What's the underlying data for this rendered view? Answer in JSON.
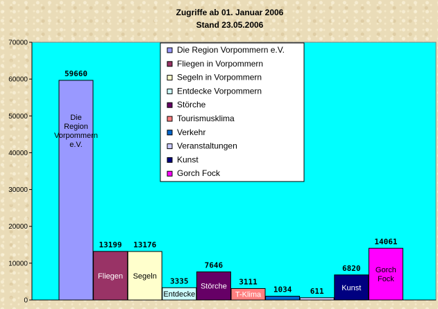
{
  "chart_data": {
    "type": "bar",
    "title": "Zugriffe ab 01. Januar 2006",
    "subtitle": "Stand 23.05.2006",
    "ylim": [
      0,
      70000
    ],
    "yticks": [
      0,
      10000,
      20000,
      30000,
      40000,
      50000,
      60000,
      70000
    ],
    "grid": false,
    "legend_position": "top-center",
    "plot_background": "#00ffff",
    "bars": [
      {
        "name": "Die Region Vorpommern e.V.",
        "value": 59660,
        "data_label": "59660",
        "bar_label": [
          "Die",
          "Region",
          "Vorpommern",
          "e.V."
        ],
        "color": "#9999ff",
        "label_color": "#000000"
      },
      {
        "name": "Fliegen in Vorpommern",
        "value": 13199,
        "data_label": "13199",
        "bar_label": [
          "Fliegen"
        ],
        "color": "#993366",
        "label_color": "#ffffff"
      },
      {
        "name": "Segeln in Vorpommern",
        "value": 13176,
        "data_label": "13176",
        "bar_label": [
          "Segeln"
        ],
        "color": "#ffffcc",
        "label_color": "#000000"
      },
      {
        "name": "Entdecke Vorpommern",
        "value": 3335,
        "data_label": "3335",
        "bar_label": [
          "Entdecke"
        ],
        "color": "#ccffff",
        "label_color": "#000000"
      },
      {
        "name": "Störche",
        "value": 7646,
        "data_label": "7646",
        "bar_label": [
          "Störche"
        ],
        "color": "#660066",
        "label_color": "#ffffff"
      },
      {
        "name": "Tourismusklima",
        "value": 3111,
        "data_label": "3111",
        "bar_label": [
          "T-Klima"
        ],
        "color": "#ff8080",
        "label_color": "#ffffff"
      },
      {
        "name": "Verkehr",
        "value": 1034,
        "data_label": "1034",
        "bar_label": [],
        "color": "#0066cc",
        "label_color": "#ffffff"
      },
      {
        "name": "Veranstaltungen",
        "value": 611,
        "data_label": "611",
        "bar_label": [],
        "color": "#ccccff",
        "label_color": "#000000"
      },
      {
        "name": "Kunst",
        "value": 6820,
        "data_label": "6820",
        "bar_label": [
          "Kunst"
        ],
        "color": "#000080",
        "label_color": "#ffffff"
      },
      {
        "name": "Gorch Fock",
        "value": 14061,
        "data_label": "14061",
        "bar_label": [
          "Gorch",
          "Fock"
        ],
        "color": "#ff00ff",
        "label_color": "#000000"
      }
    ]
  }
}
